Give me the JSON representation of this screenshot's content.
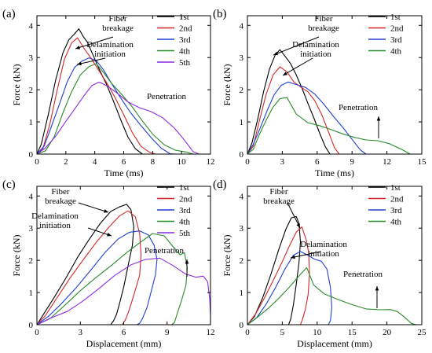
{
  "chart_data": [
    {
      "panel": "(a)",
      "type": "line",
      "xlabel": "Time (ms)",
      "ylabel": "Force (kN)",
      "xlim": [
        0,
        12
      ],
      "ylim": [
        0,
        4.3
      ],
      "xticks": [
        "0",
        "2",
        "4",
        "6",
        "8",
        "10",
        "12"
      ],
      "yticks": [
        "0",
        "1",
        "2",
        "3",
        "4"
      ],
      "legend_position": "top-right",
      "annotations": [
        "Fiber breakage",
        "Delamination initiation",
        "Penetration"
      ],
      "series": [
        {
          "name": "1st",
          "color": "#000000",
          "x": [
            0,
            0.3,
            0.8,
            1.3,
            1.8,
            2.2,
            2.6,
            2.9,
            3.2,
            3.5,
            3.9,
            4.3,
            4.8,
            5.3,
            5.8,
            6.3,
            6.8,
            7.3,
            7.6
          ],
          "y": [
            0,
            0.25,
            1.2,
            2.3,
            3.2,
            3.6,
            3.75,
            3.85,
            3.6,
            3.45,
            3.1,
            2.7,
            2.2,
            1.6,
            1.0,
            0.5,
            0.2,
            0.05,
            0
          ]
        },
        {
          "name": "2nd",
          "color": "#d62728",
          "x": [
            0,
            0.4,
            0.9,
            1.4,
            1.9,
            2.4,
            2.8,
            3.3,
            3.8,
            4.3,
            4.8,
            5.4,
            6.0,
            6.6,
            7.2,
            7.8,
            8.2
          ],
          "y": [
            0,
            0.2,
            1.0,
            2.0,
            2.9,
            3.4,
            3.6,
            3.3,
            3.0,
            2.6,
            2.2,
            1.7,
            1.2,
            0.7,
            0.3,
            0.08,
            0
          ]
        },
        {
          "name": "3rd",
          "color": "#1f3fd6",
          "x": [
            0,
            0.5,
            1.0,
            1.6,
            2.1,
            2.6,
            3.1,
            3.6,
            4.1,
            4.6,
            5.2,
            5.8,
            6.5,
            7.2,
            7.9,
            8.6,
            9.2,
            9.6
          ],
          "y": [
            0,
            0.2,
            0.8,
            1.6,
            2.3,
            2.75,
            2.9,
            2.95,
            2.85,
            2.6,
            2.2,
            1.8,
            1.3,
            0.85,
            0.45,
            0.15,
            0.04,
            0
          ]
        },
        {
          "name": "4th",
          "color": "#2a8a2a",
          "x": [
            0,
            0.6,
            1.2,
            1.8,
            2.4,
            3.0,
            3.6,
            4.1,
            4.6,
            5.2,
            5.9,
            6.6,
            7.3,
            8.0,
            8.8,
            9.6,
            10.3,
            10.8
          ],
          "y": [
            0,
            0.15,
            0.6,
            1.3,
            1.9,
            2.4,
            2.7,
            2.85,
            2.6,
            2.2,
            1.8,
            1.4,
            1.0,
            0.65,
            0.35,
            0.15,
            0.04,
            0
          ]
        },
        {
          "name": "5th",
          "color": "#8a2be2",
          "x": [
            0,
            0.6,
            1.3,
            2.0,
            2.7,
            3.3,
            3.8,
            4.3,
            4.9,
            5.6,
            6.3,
            7.1,
            7.9,
            8.7,
            9.5,
            10.2,
            10.8,
            11.2
          ],
          "y": [
            0,
            0.15,
            0.5,
            1.0,
            1.5,
            1.9,
            2.15,
            2.2,
            2.05,
            1.85,
            1.65,
            1.5,
            1.35,
            1.1,
            0.75,
            0.4,
            0.1,
            0
          ]
        }
      ]
    },
    {
      "panel": "(b)",
      "type": "line",
      "xlabel": "Time (ms)",
      "ylabel": "Force (kN)",
      "xlim": [
        0,
        15
      ],
      "ylim": [
        0,
        4.3
      ],
      "xticks": [
        "0",
        "3",
        "6",
        "9",
        "12",
        "15"
      ],
      "yticks": [
        "0",
        "1",
        "2",
        "3",
        "4"
      ],
      "legend_position": "top-right",
      "annotations": [
        "Fiber breakage",
        "Delamination initiation",
        "Penetration"
      ],
      "series": [
        {
          "name": "1st",
          "color": "#000000",
          "x": [
            0,
            0.4,
            0.9,
            1.4,
            1.9,
            2.4,
            2.8,
            3.2,
            3.7,
            4.2,
            4.7,
            5.2,
            5.7,
            6.2,
            6.7,
            7.1
          ],
          "y": [
            0,
            0.3,
            1.1,
            2.0,
            2.7,
            3.1,
            3.2,
            3.0,
            2.8,
            2.5,
            2.1,
            1.6,
            1.1,
            0.6,
            0.2,
            0
          ]
        },
        {
          "name": "2nd",
          "color": "#d62728",
          "x": [
            0,
            0.5,
            1.0,
            1.6,
            2.2,
            2.8,
            3.4,
            4.0,
            4.6,
            5.2,
            5.8,
            6.4,
            7.0,
            7.5,
            7.9
          ],
          "y": [
            0,
            0.3,
            1.0,
            1.8,
            2.4,
            2.7,
            2.6,
            2.3,
            2.1,
            1.9,
            1.6,
            1.2,
            0.7,
            0.25,
            0
          ]
        },
        {
          "name": "3rd",
          "color": "#1f3fd6",
          "x": [
            0,
            0.5,
            1.1,
            1.7,
            2.3,
            2.9,
            3.5,
            4.2,
            5.0,
            5.8,
            6.6,
            7.4,
            8.2,
            9.0,
            9.7,
            10.2
          ],
          "y": [
            0,
            0.25,
            0.8,
            1.4,
            1.9,
            2.15,
            2.2,
            2.1,
            2.05,
            1.9,
            1.6,
            1.2,
            0.8,
            0.4,
            0.1,
            0
          ]
        },
        {
          "name": "4th",
          "color": "#2a8a2a",
          "x": [
            0,
            0.5,
            1.0,
            1.6,
            2.2,
            2.8,
            3.4,
            4.2,
            5.2,
            6.2,
            7.2,
            8.2,
            9.2,
            10.2,
            11.2,
            12.2,
            13.2,
            14.0
          ],
          "y": [
            0,
            0.2,
            0.6,
            1.0,
            1.4,
            1.7,
            1.8,
            1.3,
            1.0,
            0.85,
            0.7,
            0.6,
            0.55,
            0.5,
            0.45,
            0.3,
            0.1,
            0
          ]
        }
      ]
    },
    {
      "panel": "(c)",
      "type": "line",
      "xlabel": "Displacement (mm)",
      "ylabel": "Force (kN)",
      "xlim": [
        0,
        12
      ],
      "ylim": [
        0,
        4.3
      ],
      "xticks": [
        "0",
        "3",
        "6",
        "9",
        "12"
      ],
      "yticks": [
        "0",
        "1",
        "2",
        "3",
        "4"
      ],
      "legend_position": "top-right",
      "annotations": [
        "Fiber breakage",
        "Delamination initiation",
        "Penetration"
      ],
      "series": [
        {
          "name": "1st",
          "color": "#000000",
          "x": [
            0,
            0.5,
            1.2,
            2.0,
            2.8,
            3.6,
            4.4,
            5.1,
            5.7,
            6.2,
            6.5,
            6.7,
            6.6,
            6.3,
            6.0,
            5.7,
            5.5,
            5.3,
            5.1
          ],
          "y": [
            0,
            0.35,
            0.9,
            1.5,
            2.1,
            2.6,
            3.1,
            3.5,
            3.7,
            3.8,
            3.6,
            3.0,
            2.4,
            1.8,
            1.2,
            0.7,
            0.35,
            0.1,
            0
          ]
        },
        {
          "name": "2nd",
          "color": "#d62728",
          "x": [
            0,
            0.6,
            1.4,
            2.3,
            3.2,
            4.1,
            5.0,
            5.7,
            6.3,
            6.8,
            7.1,
            7.2,
            7.1,
            6.8,
            6.5,
            6.3,
            6.1,
            5.9
          ],
          "y": [
            0,
            0.3,
            0.8,
            1.4,
            2.0,
            2.6,
            3.1,
            3.4,
            3.5,
            3.3,
            2.8,
            2.2,
            1.6,
            1.1,
            0.6,
            0.3,
            0.1,
            0
          ]
        },
        {
          "name": "3rd",
          "color": "#1f3fd6",
          "x": [
            0,
            0.8,
            1.7,
            2.7,
            3.7,
            4.7,
            5.6,
            6.4,
            7.1,
            7.7,
            8.1,
            8.3,
            8.2,
            7.9,
            7.6,
            7.3,
            7.1,
            6.9
          ],
          "y": [
            0,
            0.25,
            0.7,
            1.2,
            1.7,
            2.2,
            2.6,
            2.85,
            2.95,
            2.85,
            2.5,
            2.0,
            1.5,
            1.0,
            0.55,
            0.25,
            0.08,
            0
          ]
        },
        {
          "name": "4th",
          "color": "#2a8a2a",
          "x": [
            0,
            0.9,
            1.9,
            3.0,
            4.1,
            5.2,
            6.2,
            7.2,
            8.0,
            8.8,
            9.4,
            9.9,
            10.2,
            10.4,
            10.3,
            10.0,
            9.7,
            9.5,
            9.3
          ],
          "y": [
            0,
            0.2,
            0.55,
            1.0,
            1.45,
            1.9,
            2.3,
            2.6,
            2.8,
            2.7,
            2.4,
            2.2,
            2.3,
            1.8,
            1.2,
            0.7,
            0.3,
            0.08,
            0
          ]
        },
        {
          "name": "5th",
          "color": "#8a2be2",
          "x": [
            0,
            1.0,
            2.1,
            3.2,
            4.3,
            5.4,
            6.5,
            7.5,
            8.5,
            9.4,
            10.3,
            11.0,
            11.5,
            11.8,
            11.95,
            12.0,
            12.0
          ],
          "y": [
            0,
            0.2,
            0.45,
            0.8,
            1.15,
            1.5,
            1.8,
            2.0,
            2.1,
            1.9,
            1.6,
            1.45,
            1.45,
            1.3,
            0.8,
            0.3,
            0
          ]
        }
      ]
    },
    {
      "panel": "(d)",
      "type": "line",
      "xlabel": "Displacement (mm)",
      "ylabel": "Force (kN)",
      "xlim": [
        0,
        25
      ],
      "ylim": [
        0,
        4.3
      ],
      "xticks": [
        "0",
        "5",
        "10",
        "15",
        "20",
        "25"
      ],
      "yticks": [
        "0",
        "1",
        "2",
        "3",
        "4"
      ],
      "legend_position": "top-right",
      "annotations": [
        "Fiber breakage",
        "Delamination initiation",
        "Penetration"
      ],
      "series": [
        {
          "name": "1st",
          "color": "#000000",
          "x": [
            0,
            1.0,
            2.2,
            3.4,
            4.5,
            5.5,
            6.3,
            7.0,
            7.4,
            7.6,
            7.4,
            7.0,
            6.6,
            6.2,
            5.9
          ],
          "y": [
            0,
            0.3,
            0.9,
            1.6,
            2.3,
            2.9,
            3.3,
            3.4,
            3.2,
            2.6,
            1.9,
            1.2,
            0.6,
            0.2,
            0
          ]
        },
        {
          "name": "2nd",
          "color": "#d62728",
          "x": [
            0,
            1.2,
            2.5,
            3.8,
            5.0,
            6.0,
            7.0,
            7.8,
            8.4,
            8.8,
            8.9,
            8.7,
            8.3,
            7.9,
            7.6
          ],
          "y": [
            0,
            0.3,
            0.8,
            1.4,
            2.0,
            2.5,
            2.9,
            3.0,
            2.6,
            2.2,
            1.6,
            1.0,
            0.5,
            0.15,
            0
          ]
        },
        {
          "name": "3rd",
          "color": "#1f3fd6",
          "x": [
            0,
            1.3,
            2.7,
            4.1,
            5.4,
            6.6,
            7.6,
            8.6,
            9.6,
            10.6,
            11.4,
            11.9,
            12.1,
            11.9,
            11.6
          ],
          "y": [
            0,
            0.25,
            0.7,
            1.2,
            1.7,
            2.1,
            2.25,
            2.2,
            2.1,
            2.0,
            1.7,
            1.1,
            0.5,
            0.15,
            0
          ]
        },
        {
          "name": "4th",
          "color": "#2a8a2a",
          "x": [
            0,
            1.5,
            3.0,
            4.5,
            6.0,
            7.5,
            8.5,
            9.5,
            11.0,
            13.0,
            15.0,
            17.0,
            19.0,
            20.5,
            21.5,
            22.5,
            23.5,
            24.2
          ],
          "y": [
            0,
            0.2,
            0.45,
            0.8,
            1.2,
            1.6,
            1.8,
            1.2,
            0.9,
            0.75,
            0.65,
            0.55,
            0.5,
            0.45,
            0.35,
            0.2,
            0.06,
            0
          ]
        }
      ]
    }
  ]
}
